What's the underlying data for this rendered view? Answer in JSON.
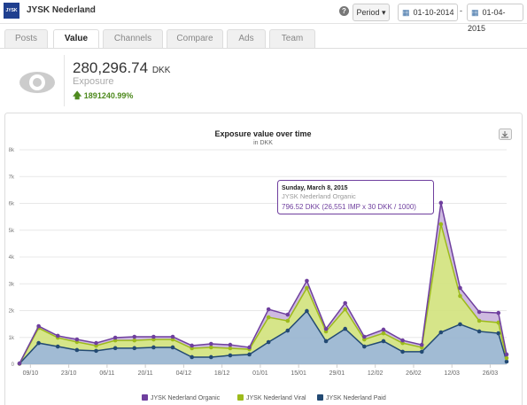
{
  "header": {
    "logo": "JYSK",
    "account": "JYSK Nederland",
    "help": "?",
    "period": "Period",
    "date_from": "01-10-2014",
    "date_separator": "-",
    "date_to": "01-04-2015"
  },
  "tabs": [
    "Posts",
    "Value",
    "Channels",
    "Compare",
    "Ads",
    "Team"
  ],
  "active_tab": 1,
  "metric": {
    "value": "280,296.74",
    "unit": "DKK",
    "label": "Exposure",
    "change": "1891240.99%"
  },
  "chart_data": {
    "type": "stacked-area",
    "title": "Exposure value over time",
    "subtitle": "in DKK",
    "x": [
      "05/10",
      "12/10",
      "19/10",
      "26/10",
      "02/11",
      "09/11",
      "16/11",
      "23/11",
      "30/11",
      "07/12",
      "14/12",
      "21/12",
      "28/12",
      "04/01",
      "11/01",
      "18/01",
      "25/01",
      "01/02",
      "08/02",
      "15/02",
      "22/02",
      "01/03",
      "08/03",
      "15/03",
      "22/03",
      "29/03",
      "01/04"
    ],
    "xlim": [
      "05/10",
      "01/04"
    ],
    "xticks": [
      "09/10",
      "23/10",
      "06/11",
      "20/11",
      "04/12",
      "18/12",
      "01/01",
      "15/01",
      "29/01",
      "12/02",
      "26/02",
      "12/03",
      "26/03"
    ],
    "ylim": [
      0,
      8000
    ],
    "yticks": [
      0,
      {
        "value": 1000,
        "label": "1k"
      },
      {
        "value": 2000,
        "label": "2k"
      },
      {
        "value": 3000,
        "label": "3k"
      },
      {
        "value": 4000,
        "label": "4k"
      },
      {
        "value": 5000,
        "label": "5k"
      },
      {
        "value": 6000,
        "label": "6k"
      },
      {
        "value": 7000,
        "label": "7k"
      },
      {
        "value": 8000,
        "label": "8k"
      }
    ],
    "grid": true,
    "series": [
      {
        "name": "JYSK Nederland Organic",
        "color": "#6f3f9e",
        "fill": "#c9b3dd",
        "values": [
          10,
          70,
          70,
          95,
          100,
          100,
          135,
          100,
          100,
          100,
          130,
          130,
          70,
          300,
          230,
          265,
          95,
          230,
          100,
          135,
          100,
          95,
          796.52,
          300,
          330,
          360,
          135
        ]
      },
      {
        "name": "JYSK Nederland Viral",
        "color": "#9dbb1b",
        "fill": "#d2e27c",
        "values": [
          0,
          560,
          330,
          300,
          190,
          290,
          290,
          295,
          295,
          330,
          365,
          265,
          195,
          925,
          365,
          860,
          365,
          730,
          265,
          295,
          325,
          165,
          4035,
          1055,
          395,
          400,
          130
        ]
      },
      {
        "name": "JYSK Nederland Paid",
        "color": "#234a73",
        "fill": "#97b4cf",
        "values": [
          20,
          790,
          660,
          530,
          500,
          600,
          600,
          630,
          630,
          265,
          265,
          330,
          365,
          825,
          1255,
          1985,
          860,
          1320,
          660,
          860,
          465,
          465,
          1190,
          1490,
          1225,
          1155,
          100
        ]
      }
    ],
    "tooltip": {
      "title": "Sunday, March 8, 2015",
      "series": "JYSK Nederland Organic",
      "text": "796.52 DKK (26,551 IMP x 30 DKK / 1000)"
    }
  }
}
